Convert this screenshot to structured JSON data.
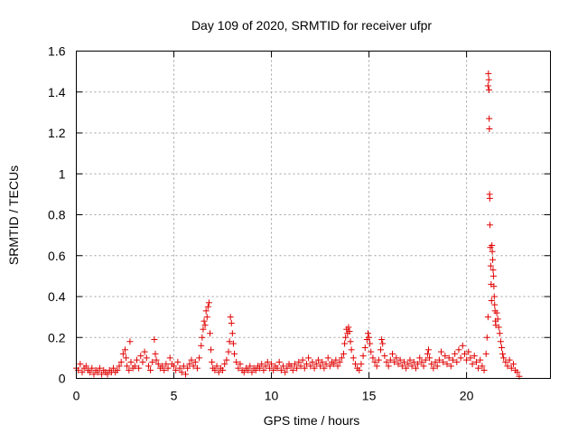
{
  "chart_data": {
    "type": "scatter",
    "title": "Day 109 of 2020, SRMTID for receiver ufpr",
    "xlabel": "GPS time / hours",
    "ylabel": "SRMTID / TECUs",
    "xlim": [
      0,
      24.3
    ],
    "ylim": [
      0,
      1.6
    ],
    "xticks": [
      0,
      5,
      10,
      15,
      20
    ],
    "xtick_labels": [
      "0",
      "5",
      "10",
      "15",
      "20"
    ],
    "yticks": [
      0,
      0.2,
      0.4,
      0.6,
      0.8,
      1,
      1.2,
      1.4,
      1.6
    ],
    "ytick_labels": [
      "0",
      "0.2",
      "0.4",
      "0.6",
      "0.8",
      "1",
      "1.2",
      "1.4",
      "1.6"
    ],
    "grid": true,
    "marker": "plus",
    "series": [
      {
        "name": "SRMTID",
        "color": "#e00000",
        "points": [
          [
            0.0,
            0.05
          ],
          [
            0.1,
            0.04
          ],
          [
            0.2,
            0.07
          ],
          [
            0.3,
            0.03
          ],
          [
            0.4,
            0.05
          ],
          [
            0.5,
            0.06
          ],
          [
            0.6,
            0.04
          ],
          [
            0.7,
            0.03
          ],
          [
            0.8,
            0.05
          ],
          [
            0.9,
            0.02
          ],
          [
            1.0,
            0.04
          ],
          [
            1.1,
            0.03
          ],
          [
            1.2,
            0.05
          ],
          [
            1.3,
            0.02
          ],
          [
            1.4,
            0.04
          ],
          [
            1.5,
            0.03
          ],
          [
            1.6,
            0.02
          ],
          [
            1.7,
            0.04
          ],
          [
            1.8,
            0.03
          ],
          [
            1.9,
            0.05
          ],
          [
            2.0,
            0.03
          ],
          [
            2.1,
            0.04
          ],
          [
            2.2,
            0.06
          ],
          [
            2.3,
            0.08
          ],
          [
            2.4,
            0.12
          ],
          [
            2.5,
            0.14
          ],
          [
            2.55,
            0.1
          ],
          [
            2.6,
            0.06
          ],
          [
            2.7,
            0.04
          ],
          [
            2.75,
            0.18
          ],
          [
            2.8,
            0.08
          ],
          [
            2.9,
            0.05
          ],
          [
            3.0,
            0.06
          ],
          [
            3.1,
            0.09
          ],
          [
            3.2,
            0.05
          ],
          [
            3.3,
            0.11
          ],
          [
            3.4,
            0.08
          ],
          [
            3.5,
            0.13
          ],
          [
            3.6,
            0.1
          ],
          [
            3.7,
            0.06
          ],
          [
            3.8,
            0.04
          ],
          [
            3.9,
            0.08
          ],
          [
            4.0,
            0.19
          ],
          [
            4.05,
            0.12
          ],
          [
            4.1,
            0.09
          ],
          [
            4.2,
            0.07
          ],
          [
            4.3,
            0.05
          ],
          [
            4.4,
            0.06
          ],
          [
            4.5,
            0.04
          ],
          [
            4.6,
            0.07
          ],
          [
            4.7,
            0.05
          ],
          [
            4.8,
            0.1
          ],
          [
            4.9,
            0.07
          ],
          [
            5.0,
            0.06
          ],
          [
            5.1,
            0.04
          ],
          [
            5.2,
            0.08
          ],
          [
            5.3,
            0.05
          ],
          [
            5.4,
            0.03
          ],
          [
            5.5,
            0.06
          ],
          [
            5.6,
            0.02
          ],
          [
            5.7,
            0.05
          ],
          [
            5.8,
            0.07
          ],
          [
            5.9,
            0.09
          ],
          [
            6.0,
            0.06
          ],
          [
            6.1,
            0.08
          ],
          [
            6.2,
            0.05
          ],
          [
            6.3,
            0.1
          ],
          [
            6.4,
            0.16
          ],
          [
            6.45,
            0.2
          ],
          [
            6.5,
            0.24
          ],
          [
            6.55,
            0.28
          ],
          [
            6.6,
            0.26
          ],
          [
            6.65,
            0.33
          ],
          [
            6.7,
            0.3
          ],
          [
            6.75,
            0.35
          ],
          [
            6.8,
            0.37
          ],
          [
            6.85,
            0.22
          ],
          [
            6.9,
            0.14
          ],
          [
            6.95,
            0.08
          ],
          [
            7.0,
            0.05
          ],
          [
            7.1,
            0.04
          ],
          [
            7.2,
            0.06
          ],
          [
            7.3,
            0.03
          ],
          [
            7.4,
            0.05
          ],
          [
            7.5,
            0.04
          ],
          [
            7.6,
            0.07
          ],
          [
            7.7,
            0.09
          ],
          [
            7.8,
            0.13
          ],
          [
            7.85,
            0.18
          ],
          [
            7.9,
            0.3
          ],
          [
            7.95,
            0.27
          ],
          [
            8.0,
            0.22
          ],
          [
            8.05,
            0.17
          ],
          [
            8.1,
            0.12
          ],
          [
            8.2,
            0.08
          ],
          [
            8.3,
            0.05
          ],
          [
            8.4,
            0.07
          ],
          [
            8.5,
            0.04
          ],
          [
            8.6,
            0.03
          ],
          [
            8.7,
            0.05
          ],
          [
            8.8,
            0.04
          ],
          [
            8.9,
            0.06
          ],
          [
            9.0,
            0.03
          ],
          [
            9.1,
            0.05
          ],
          [
            9.2,
            0.04
          ],
          [
            9.3,
            0.06
          ],
          [
            9.4,
            0.05
          ],
          [
            9.5,
            0.07
          ],
          [
            9.6,
            0.04
          ],
          [
            9.7,
            0.06
          ],
          [
            9.8,
            0.08
          ],
          [
            9.9,
            0.05
          ],
          [
            10.0,
            0.07
          ],
          [
            10.1,
            0.04
          ],
          [
            10.2,
            0.06
          ],
          [
            10.3,
            0.05
          ],
          [
            10.4,
            0.08
          ],
          [
            10.5,
            0.04
          ],
          [
            10.6,
            0.06
          ],
          [
            10.7,
            0.03
          ],
          [
            10.8,
            0.05
          ],
          [
            10.9,
            0.07
          ],
          [
            11.0,
            0.06
          ],
          [
            11.1,
            0.04
          ],
          [
            11.2,
            0.07
          ],
          [
            11.3,
            0.05
          ],
          [
            11.4,
            0.08
          ],
          [
            11.5,
            0.06
          ],
          [
            11.6,
            0.09
          ],
          [
            11.7,
            0.05
          ],
          [
            11.8,
            0.07
          ],
          [
            11.9,
            0.1
          ],
          [
            12.0,
            0.06
          ],
          [
            12.1,
            0.08
          ],
          [
            12.2,
            0.05
          ],
          [
            12.3,
            0.07
          ],
          [
            12.4,
            0.09
          ],
          [
            12.5,
            0.06
          ],
          [
            12.6,
            0.08
          ],
          [
            12.7,
            0.05
          ],
          [
            12.8,
            0.07
          ],
          [
            12.9,
            0.1
          ],
          [
            13.0,
            0.06
          ],
          [
            13.1,
            0.08
          ],
          [
            13.2,
            0.07
          ],
          [
            13.3,
            0.09
          ],
          [
            13.4,
            0.06
          ],
          [
            13.5,
            0.08
          ],
          [
            13.6,
            0.1
          ],
          [
            13.7,
            0.12
          ],
          [
            13.75,
            0.17
          ],
          [
            13.8,
            0.2
          ],
          [
            13.85,
            0.24
          ],
          [
            13.9,
            0.22
          ],
          [
            13.95,
            0.25
          ],
          [
            14.0,
            0.23
          ],
          [
            14.05,
            0.18
          ],
          [
            14.1,
            0.14
          ],
          [
            14.2,
            0.1
          ],
          [
            14.3,
            0.07
          ],
          [
            14.4,
            0.05
          ],
          [
            14.5,
            0.04
          ],
          [
            14.6,
            0.07
          ],
          [
            14.7,
            0.11
          ],
          [
            14.8,
            0.15
          ],
          [
            14.9,
            0.19
          ],
          [
            14.95,
            0.22
          ],
          [
            15.0,
            0.2
          ],
          [
            15.05,
            0.17
          ],
          [
            15.1,
            0.13
          ],
          [
            15.2,
            0.1
          ],
          [
            15.3,
            0.08
          ],
          [
            15.4,
            0.06
          ],
          [
            15.5,
            0.09
          ],
          [
            15.6,
            0.14
          ],
          [
            15.65,
            0.19
          ],
          [
            15.7,
            0.17
          ],
          [
            15.8,
            0.11
          ],
          [
            15.9,
            0.08
          ],
          [
            16.0,
            0.06
          ],
          [
            16.1,
            0.09
          ],
          [
            16.2,
            0.12
          ],
          [
            16.3,
            0.08
          ],
          [
            16.4,
            0.1
          ],
          [
            16.5,
            0.07
          ],
          [
            16.6,
            0.09
          ],
          [
            16.7,
            0.06
          ],
          [
            16.8,
            0.08
          ],
          [
            16.9,
            0.05
          ],
          [
            17.0,
            0.07
          ],
          [
            17.1,
            0.09
          ],
          [
            17.2,
            0.06
          ],
          [
            17.3,
            0.08
          ],
          [
            17.4,
            0.05
          ],
          [
            17.5,
            0.07
          ],
          [
            17.6,
            0.1
          ],
          [
            17.7,
            0.08
          ],
          [
            17.8,
            0.06
          ],
          [
            17.9,
            0.09
          ],
          [
            18.0,
            0.12
          ],
          [
            18.05,
            0.14
          ],
          [
            18.1,
            0.1
          ],
          [
            18.2,
            0.07
          ],
          [
            18.3,
            0.05
          ],
          [
            18.4,
            0.08
          ],
          [
            18.5,
            0.06
          ],
          [
            18.6,
            0.09
          ],
          [
            18.7,
            0.13
          ],
          [
            18.8,
            0.08
          ],
          [
            18.9,
            0.11
          ],
          [
            19.0,
            0.07
          ],
          [
            19.1,
            0.1
          ],
          [
            19.2,
            0.06
          ],
          [
            19.3,
            0.09
          ],
          [
            19.4,
            0.12
          ],
          [
            19.5,
            0.08
          ],
          [
            19.6,
            0.14
          ],
          [
            19.7,
            0.1
          ],
          [
            19.8,
            0.16
          ],
          [
            19.9,
            0.12
          ],
          [
            20.0,
            0.09
          ],
          [
            20.1,
            0.13
          ],
          [
            20.2,
            0.1
          ],
          [
            20.3,
            0.07
          ],
          [
            20.4,
            0.11
          ],
          [
            20.5,
            0.08
          ],
          [
            20.6,
            0.05
          ],
          [
            20.7,
            0.09
          ],
          [
            20.8,
            0.06
          ],
          [
            20.9,
            0.04
          ],
          [
            21.0,
            0.12
          ],
          [
            21.05,
            0.2
          ],
          [
            21.1,
            0.3
          ],
          [
            21.1,
            1.43
          ],
          [
            21.12,
            1.49
          ],
          [
            21.14,
            1.46
          ],
          [
            21.15,
            1.41
          ],
          [
            21.16,
            1.27
          ],
          [
            21.17,
            1.22
          ],
          [
            21.18,
            0.9
          ],
          [
            21.19,
            0.88
          ],
          [
            21.2,
            0.75
          ],
          [
            21.22,
            0.64
          ],
          [
            21.24,
            0.55
          ],
          [
            21.26,
            0.46
          ],
          [
            21.28,
            0.38
          ],
          [
            21.3,
            0.65
          ],
          [
            21.32,
            0.62
          ],
          [
            21.34,
            0.58
          ],
          [
            21.36,
            0.53
          ],
          [
            21.38,
            0.5
          ],
          [
            21.4,
            0.45
          ],
          [
            21.42,
            0.4
          ],
          [
            21.44,
            0.36
          ],
          [
            21.46,
            0.33
          ],
          [
            21.48,
            0.28
          ],
          [
            21.5,
            0.26
          ],
          [
            21.55,
            0.32
          ],
          [
            21.6,
            0.29
          ],
          [
            21.65,
            0.25
          ],
          [
            21.7,
            0.22
          ],
          [
            21.75,
            0.18
          ],
          [
            21.8,
            0.15
          ],
          [
            21.85,
            0.12
          ],
          [
            21.9,
            0.1
          ],
          [
            22.0,
            0.08
          ],
          [
            22.1,
            0.06
          ],
          [
            22.2,
            0.09
          ],
          [
            22.3,
            0.05
          ],
          [
            22.4,
            0.07
          ],
          [
            22.5,
            0.04
          ],
          [
            22.6,
            0.03
          ],
          [
            22.7,
            0.01
          ]
        ]
      }
    ]
  }
}
